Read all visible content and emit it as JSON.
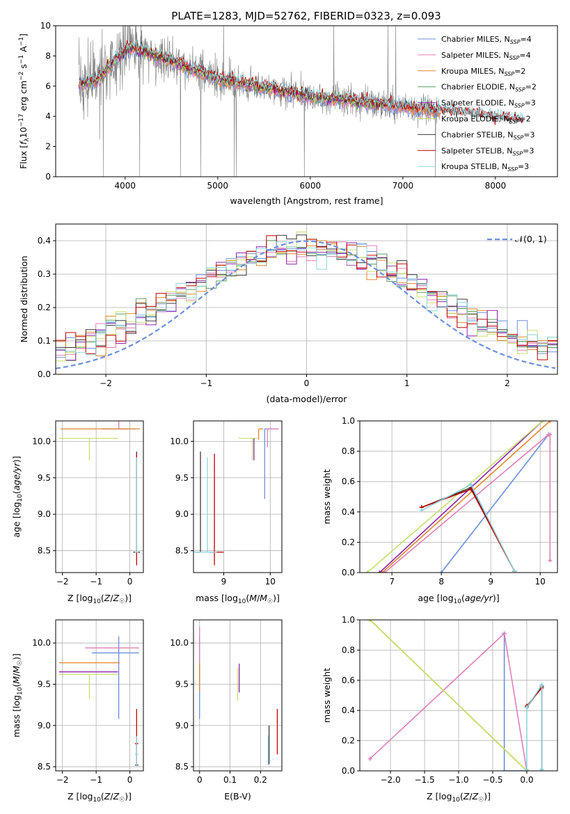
{
  "colors": {
    "chabrier_miles": "#6a8fdc",
    "salpeter_miles": "#e07fb7",
    "kroupa_miles": "#e0862b",
    "chabrier_elodie": "#5a9e63",
    "salpeter_elodie": "#8e24aa",
    "kroupa_elodie": "#c5e06b",
    "chabrier_stelib": "#3a3a3a",
    "salpeter_stelib": "#c00000",
    "kroupa_stelib": "#8ed4dc",
    "data": "#808080"
  },
  "legend": {
    "entries": [
      {
        "prefix": "Chabrier MILES, N",
        "sub": "SSP",
        "suffix": "=4",
        "color": "#6a8fdc"
      },
      {
        "prefix": "Salpeter MILES, N",
        "sub": "SSP",
        "suffix": "=4",
        "color": "#e07fb7"
      },
      {
        "prefix": "Kroupa MILES, N",
        "sub": "SSP",
        "suffix": "=2",
        "color": "#e0862b"
      },
      {
        "prefix": "Chabrier ELODIE, N",
        "sub": "SSP",
        "suffix": "=2",
        "color": "#5a9e63"
      },
      {
        "prefix": "Salpeter ELODIE, N",
        "sub": "SSP",
        "suffix": "=3",
        "color": "#8e24aa"
      },
      {
        "prefix": "Kroupa ELODIE, N",
        "sub": "SSP",
        "suffix": "=2",
        "color": "#c5e06b"
      },
      {
        "prefix": "Chabrier STELIB, N",
        "sub": "SSP",
        "suffix": "=3",
        "color": "#3a3a3a"
      },
      {
        "prefix": "Salpeter STELIB, N",
        "sub": "SSP",
        "suffix": "=3",
        "color": "#c00000"
      },
      {
        "prefix": "Kroupa STELIB, N",
        "sub": "SSP",
        "suffix": "=3",
        "color": "#8ed4dc"
      }
    ],
    "normal_label": "𝒩(0, 1)"
  },
  "chart_data": [
    {
      "id": "spectrum",
      "type": "line",
      "title": "PLATE=1283, MJD=52762, FIBERID=0323, z=0.093",
      "xlabel": "wavelength [Angstrom, rest frame]",
      "ylabel": "Flux [fλ10⁻¹⁷ erg cm⁻² s⁻¹ A⁻¹]",
      "xlim": [
        3250,
        8670
      ],
      "ylim": [
        0,
        10
      ],
      "xticks": [
        4000,
        5000,
        6000,
        7000,
        8000
      ],
      "yticks": [
        0,
        2,
        4,
        6,
        8,
        10
      ],
      "continuum": {
        "x": [
          3500,
          3700,
          3900,
          4050,
          4300,
          4600,
          5000,
          5500,
          6000,
          6500,
          7000,
          7400,
          8000,
          8300
        ],
        "y": [
          6.1,
          6.4,
          7.8,
          8.6,
          8.1,
          7.4,
          6.5,
          5.9,
          5.3,
          5.0,
          4.6,
          4.4,
          3.9,
          3.7
        ]
      }
    },
    {
      "id": "residuals",
      "type": "line",
      "xlabel": "(data-model)/error",
      "ylabel": "Normed distribution",
      "xlim": [
        -2.5,
        2.5
      ],
      "ylim": [
        0,
        0.45
      ],
      "xticks": [
        -2,
        -1,
        0,
        1,
        2
      ],
      "yticks": [
        0.0,
        0.1,
        0.2,
        0.3,
        0.4
      ],
      "normal_curve": {
        "mean": 0,
        "sigma": 1
      },
      "bin_width": 0.1
    },
    {
      "id": "age_vs_z",
      "type": "scatter",
      "xlabel": "Z [log10(Z/Z☉)]",
      "ylabel": "age [log10(age/yr)]",
      "xlim": [
        -2.2,
        0.4
      ],
      "ylim": [
        8.2,
        10.28
      ],
      "xticks": [
        -2,
        -1,
        0
      ],
      "yticks": [
        8.5,
        9.0,
        9.5,
        10.0
      ],
      "points": [
        {
          "model": "chabrier_miles",
          "x": -0.33,
          "y": 10.17,
          "xerr": [
            0.5,
            0.5
          ],
          "yerr": [
            0.0,
            0.96
          ]
        },
        {
          "model": "salpeter_miles",
          "x": -0.33,
          "y": 10.17,
          "xerr": [
            0.5,
            0.3
          ],
          "yerr": [
            0.0,
            0.3
          ]
        },
        {
          "model": "kroupa_miles",
          "x": -0.8,
          "y": 10.17,
          "xerr": [
            1.25,
            1.1
          ],
          "yerr": [
            0.0,
            0.0
          ]
        },
        {
          "model": "kroupa_elodie",
          "x": -1.2,
          "y": 10.04,
          "xerr": [
            0.9,
            0.85
          ],
          "yerr": [
            0.3,
            0.0
          ]
        },
        {
          "model": "chabrier_stelib",
          "x": 0.2,
          "y": 8.48,
          "xerr": [
            0.1,
            0.1
          ],
          "yerr": [
            0.0,
            1.38
          ]
        },
        {
          "model": "salpeter_stelib",
          "x": 0.2,
          "y": 8.48,
          "xerr": [
            0.05,
            0.05
          ],
          "yerr": [
            0.18,
            1.35
          ]
        },
        {
          "model": "kroupa_stelib",
          "x": 0.2,
          "y": 8.48,
          "xerr": [
            0.05,
            0.05
          ],
          "yerr": [
            0.0,
            1.3
          ]
        }
      ]
    },
    {
      "id": "age_vs_mass",
      "type": "scatter",
      "xlabel": "mass [log10(M/M☉)]",
      "ylabel": "",
      "xlim": [
        8.35,
        10.25
      ],
      "ylim": [
        8.2,
        10.28
      ],
      "xticks": [
        9,
        10
      ],
      "yticks": [
        8.5,
        9.0,
        9.5,
        10.0
      ],
      "points": [
        {
          "model": "chabrier_miles",
          "x": 9.88,
          "y": 10.17,
          "xerr": [
            0.0,
            0.3
          ],
          "yerr": [
            0.96,
            0.0
          ]
        },
        {
          "model": "salpeter_miles",
          "x": 9.94,
          "y": 10.17,
          "xerr": [
            0.0,
            0.24
          ],
          "yerr": [
            0.25,
            0.0
          ]
        },
        {
          "model": "kroupa_miles",
          "x": 9.75,
          "y": 10.17,
          "xerr": [
            0.0,
            0.1
          ],
          "yerr": [
            0.15,
            0.0
          ]
        },
        {
          "model": "kroupa_elodie",
          "x": 9.62,
          "y": 10.04,
          "xerr": [
            0.3,
            0.1
          ],
          "yerr": [
            0.3,
            0.0
          ]
        },
        {
          "model": "salpeter_elodie",
          "x": 9.65,
          "y": 10.04,
          "xerr": [
            0.0,
            0.0
          ],
          "yerr": [
            0.3,
            0.0
          ]
        },
        {
          "model": "chabrier_stelib",
          "x": 8.5,
          "y": 8.48,
          "xerr": [
            0.1,
            0.0
          ],
          "yerr": [
            0.0,
            1.38
          ]
        },
        {
          "model": "salpeter_stelib",
          "x": 8.8,
          "y": 8.48,
          "xerr": [
            0.1,
            0.2
          ],
          "yerr": [
            0.18,
            1.35
          ]
        },
        {
          "model": "kroupa_stelib",
          "x": 8.65,
          "y": 8.48,
          "xerr": [
            0.3,
            0.2
          ],
          "yerr": [
            0.0,
            1.3
          ]
        }
      ]
    },
    {
      "id": "weight_vs_age",
      "type": "line",
      "xlabel": "age [log10(age/yr)]",
      "ylabel": "mass weight",
      "xlim": [
        6.35,
        10.35
      ],
      "ylim": [
        0,
        1
      ],
      "xticks": [
        7,
        8,
        9,
        10
      ],
      "yticks": [
        0.0,
        0.2,
        0.4,
        0.6,
        0.8,
        1.0
      ],
      "series": [
        {
          "model": "chabrier_miles",
          "x": [
            8.0,
            10.17
          ],
          "y": [
            0.0,
            0.91
          ]
        },
        {
          "model": "salpeter_miles",
          "x": [
            6.85,
            10.17,
            10.2,
            10.2
          ],
          "y": [
            0.0,
            0.91,
            0.91,
            0.08
          ]
        },
        {
          "model": "kroupa_miles",
          "x": [
            6.8,
            10.2
          ],
          "y": [
            0.0,
            1.0
          ]
        },
        {
          "model": "salpeter_elodie",
          "x": [
            6.75,
            10.05
          ],
          "y": [
            0.0,
            1.0
          ]
        },
        {
          "model": "kroupa_elodie",
          "x": [
            6.5,
            10.05
          ],
          "y": [
            0.0,
            1.0
          ]
        },
        {
          "model": "chabrier_stelib",
          "x": [
            7.6,
            8.6,
            9.48
          ],
          "y": [
            0.43,
            0.56,
            0.01
          ]
        },
        {
          "model": "salpeter_stelib",
          "x": [
            7.6,
            8.6,
            9.48
          ],
          "y": [
            0.43,
            0.55,
            0.01
          ]
        },
        {
          "model": "kroupa_stelib",
          "x": [
            7.6,
            8.6,
            9.48
          ],
          "y": [
            0.41,
            0.58,
            0.01
          ]
        }
      ]
    },
    {
      "id": "mass_vs_z",
      "type": "scatter",
      "xlabel": "Z [log10(Z/Z☉)]",
      "ylabel": "mass [log10(M/M☉)]",
      "xlim": [
        -2.2,
        0.4
      ],
      "ylim": [
        8.45,
        10.28
      ],
      "xticks": [
        -2,
        -1,
        0
      ],
      "yticks": [
        8.5,
        9.0,
        9.5,
        10.0
      ],
      "points": [
        {
          "model": "chabrier_miles",
          "x": -0.33,
          "y": 9.88,
          "xerr": [
            0.8,
            0.6
          ],
          "yerr": [
            0.8,
            0.2
          ]
        },
        {
          "model": "salpeter_miles",
          "x": -0.33,
          "y": 9.94,
          "xerr": [
            1.0,
            0.6
          ],
          "yerr": [
            0.0,
            0.0
          ]
        },
        {
          "model": "kroupa_miles",
          "x": -1.2,
          "y": 9.76,
          "xerr": [
            0.9,
            0.9
          ],
          "yerr": [
            0.0,
            0.0
          ]
        },
        {
          "model": "salpeter_elodie",
          "x": -1.2,
          "y": 9.65,
          "xerr": [
            0.9,
            0.85
          ],
          "yerr": [
            0.0,
            0.0
          ]
        },
        {
          "model": "kroupa_elodie",
          "x": -1.2,
          "y": 9.62,
          "xerr": [
            0.9,
            0.85
          ],
          "yerr": [
            0.3,
            0.0
          ]
        },
        {
          "model": "chabrier_stelib",
          "x": 0.2,
          "y": 8.52,
          "xerr": [
            0.05,
            0.05
          ],
          "yerr": [
            0.0,
            0.35
          ]
        },
        {
          "model": "salpeter_stelib",
          "x": 0.2,
          "y": 8.78,
          "xerr": [
            0.05,
            0.05
          ],
          "yerr": [
            0.25,
            0.42
          ]
        },
        {
          "model": "kroupa_stelib",
          "x": 0.2,
          "y": 8.65,
          "xerr": [
            0.05,
            0.05
          ],
          "yerr": [
            0.15,
            0.22
          ]
        }
      ]
    },
    {
      "id": "mass_vs_ebv",
      "type": "scatter",
      "xlabel": "E(B-V)",
      "ylabel": "",
      "xlim": [
        -0.02,
        0.27
      ],
      "ylim": [
        8.45,
        10.28
      ],
      "xticks": [
        0.0,
        0.1,
        0.2
      ],
      "yticks": [
        8.5,
        9.0,
        9.5,
        10.0
      ],
      "points": [
        {
          "model": "chabrier_miles",
          "x": 0.0,
          "y": 9.88,
          "xerr": [
            0,
            0
          ],
          "yerr": [
            0.8,
            0.2
          ]
        },
        {
          "model": "salpeter_miles",
          "x": 0.0,
          "y": 9.94,
          "xerr": [
            0,
            0
          ],
          "yerr": [
            0.2,
            0.26
          ]
        },
        {
          "model": "kroupa_miles",
          "x": 0.0,
          "y": 9.76,
          "xerr": [
            0,
            0
          ],
          "yerr": [
            0.35,
            0.0
          ]
        },
        {
          "model": "salpeter_elodie",
          "x": 0.13,
          "y": 9.6,
          "xerr": [
            0,
            0
          ],
          "yerr": [
            0.2,
            0.15
          ]
        },
        {
          "model": "kroupa_elodie",
          "x": 0.125,
          "y": 9.55,
          "xerr": [
            0,
            0
          ],
          "yerr": [
            0.25,
            0.15
          ]
        },
        {
          "model": "chabrier_stelib",
          "x": 0.228,
          "y": 8.75,
          "xerr": [
            0,
            0
          ],
          "yerr": [
            0.22,
            0.25
          ]
        },
        {
          "model": "salpeter_stelib",
          "x": 0.255,
          "y": 8.9,
          "xerr": [
            0,
            0
          ],
          "yerr": [
            0.25,
            0.3
          ]
        },
        {
          "model": "kroupa_stelib",
          "x": 0.225,
          "y": 8.7,
          "xerr": [
            0,
            0
          ],
          "yerr": [
            0.18,
            0.18
          ]
        }
      ]
    },
    {
      "id": "weight_vs_z",
      "type": "line",
      "xlabel": "Z [log10(Z/Z☉)]",
      "ylabel": "mass weight",
      "xlim": [
        -2.45,
        0.45
      ],
      "ylim": [
        0,
        1
      ],
      "xticks": [
        -2.0,
        -1.5,
        -1.0,
        -0.5,
        0.0
      ],
      "yticks": [
        0.0,
        0.2,
        0.4,
        0.6,
        0.8,
        1.0
      ],
      "series": [
        {
          "model": "chabrier_miles",
          "x": [
            -0.33,
            -0.33,
            0.0
          ],
          "y": [
            0.91,
            0.0,
            0.0
          ]
        },
        {
          "model": "salpeter_miles",
          "x": [
            -2.3,
            -0.33,
            0.0
          ],
          "y": [
            0.08,
            0.91,
            0.0
          ]
        },
        {
          "model": "kroupa_miles",
          "x": [
            -2.3,
            0.0
          ],
          "y": [
            1.0,
            0.0
          ]
        },
        {
          "model": "kroupa_elodie",
          "x": [
            -2.3,
            0.0
          ],
          "y": [
            1.0,
            0.0
          ]
        },
        {
          "model": "chabrier_stelib",
          "x": [
            0.0,
            0.22,
            0.22
          ],
          "y": [
            0.42,
            0.56,
            0.01
          ]
        },
        {
          "model": "salpeter_stelib",
          "x": [
            0.0,
            0.22
          ],
          "y": [
            0.43,
            0.55
          ]
        },
        {
          "model": "kroupa_stelib",
          "x": [
            0.0,
            0.0,
            0.22,
            0.22
          ],
          "y": [
            0.01,
            0.42,
            0.57,
            0.01
          ]
        }
      ]
    }
  ]
}
